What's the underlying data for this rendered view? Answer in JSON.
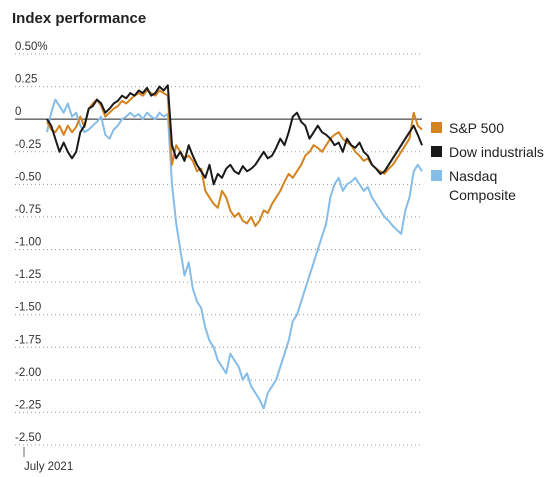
{
  "chart_data": {
    "type": "line",
    "title": "Index performance",
    "xlabel": "July 2021",
    "ylabel": "",
    "ylim": [
      -2.5,
      0.5
    ],
    "yticks": [
      0.5,
      0.25,
      0,
      -0.25,
      -0.5,
      -0.75,
      -1.0,
      -1.25,
      -1.5,
      -1.75,
      -2.0,
      -2.25,
      -2.5
    ],
    "ytick_labels": [
      "0.50%",
      "0.25",
      "0",
      "-0.25",
      "-0.50",
      "-0.75",
      "-1.00",
      "-1.25",
      "-1.50",
      "-1.75",
      "-2.00",
      "-2.25",
      "-2.50"
    ],
    "grid": "horizontal dotted",
    "legend_position": "right",
    "x": [
      0,
      1,
      2,
      3,
      4,
      5,
      6,
      7,
      8,
      9,
      10,
      11,
      12,
      13,
      14,
      15,
      16,
      17,
      18,
      19,
      20,
      21,
      22,
      23,
      24,
      25,
      26,
      27,
      28,
      29,
      30,
      31,
      32,
      33,
      34,
      35,
      36,
      37,
      38,
      39,
      40,
      41,
      42,
      43,
      44,
      45,
      46,
      47,
      48,
      49,
      50,
      51,
      52,
      53,
      54,
      55,
      56,
      57,
      58,
      59,
      60,
      61,
      62,
      63,
      64,
      65,
      66,
      67,
      68,
      69,
      70,
      71,
      72,
      73,
      74,
      75,
      76,
      77,
      78,
      79,
      80,
      81,
      82,
      83,
      84,
      85,
      86,
      87,
      88,
      89,
      90
    ],
    "series": [
      {
        "name": "S&P 500",
        "color": "#d4841f",
        "values": [
          -0.02,
          -0.08,
          -0.1,
          -0.05,
          -0.12,
          -0.05,
          -0.1,
          -0.06,
          0.02,
          -0.06,
          0.08,
          0.12,
          0.15,
          0.1,
          0.02,
          0.05,
          0.08,
          0.1,
          0.14,
          0.12,
          0.15,
          0.18,
          0.2,
          0.18,
          0.22,
          0.2,
          0.18,
          0.22,
          0.2,
          0.18,
          -0.35,
          -0.2,
          -0.25,
          -0.3,
          -0.28,
          -0.32,
          -0.4,
          -0.38,
          -0.55,
          -0.6,
          -0.65,
          -0.68,
          -0.55,
          -0.6,
          -0.7,
          -0.75,
          -0.72,
          -0.78,
          -0.8,
          -0.75,
          -0.82,
          -0.78,
          -0.7,
          -0.72,
          -0.65,
          -0.6,
          -0.55,
          -0.48,
          -0.42,
          -0.45,
          -0.4,
          -0.35,
          -0.28,
          -0.25,
          -0.2,
          -0.22,
          -0.25,
          -0.2,
          -0.15,
          -0.12,
          -0.1,
          -0.15,
          -0.18,
          -0.2,
          -0.25,
          -0.28,
          -0.32,
          -0.3,
          -0.35,
          -0.38,
          -0.4,
          -0.42,
          -0.38,
          -0.35,
          -0.3,
          -0.25,
          -0.2,
          -0.15,
          0.05,
          -0.05,
          -0.08
        ]
      },
      {
        "name": "Dow industrials",
        "color": "#1a1a1a",
        "values": [
          0.0,
          -0.05,
          -0.15,
          -0.25,
          -0.18,
          -0.25,
          -0.3,
          -0.25,
          -0.1,
          -0.05,
          0.08,
          0.1,
          0.15,
          0.12,
          0.05,
          0.08,
          0.12,
          0.14,
          0.18,
          0.16,
          0.2,
          0.18,
          0.22,
          0.2,
          0.24,
          0.18,
          0.2,
          0.25,
          0.22,
          0.26,
          -0.2,
          -0.3,
          -0.25,
          -0.32,
          -0.2,
          -0.28,
          -0.35,
          -0.4,
          -0.45,
          -0.35,
          -0.5,
          -0.42,
          -0.45,
          -0.38,
          -0.35,
          -0.4,
          -0.42,
          -0.36,
          -0.4,
          -0.38,
          -0.35,
          -0.3,
          -0.25,
          -0.3,
          -0.28,
          -0.22,
          -0.15,
          -0.2,
          -0.1,
          0.02,
          0.05,
          -0.02,
          -0.05,
          -0.15,
          -0.1,
          -0.05,
          -0.1,
          -0.12,
          -0.15,
          -0.2,
          -0.18,
          -0.25,
          -0.15,
          -0.2,
          -0.22,
          -0.18,
          -0.25,
          -0.28,
          -0.35,
          -0.38,
          -0.42,
          -0.4,
          -0.35,
          -0.3,
          -0.25,
          -0.2,
          -0.15,
          -0.1,
          -0.05,
          -0.12,
          -0.2
        ]
      },
      {
        "name": "Nasdaq Composite",
        "color": "#86bde8",
        "values": [
          -0.1,
          0.05,
          0.15,
          0.1,
          0.05,
          0.12,
          0.02,
          0.05,
          -0.05,
          -0.1,
          -0.08,
          -0.05,
          -0.02,
          0.02,
          -0.12,
          -0.15,
          -0.08,
          -0.05,
          0.0,
          0.02,
          0.05,
          0.02,
          0.04,
          0.0,
          0.05,
          0.02,
          0.0,
          0.05,
          0.02,
          0.04,
          -0.5,
          -0.8,
          -1.0,
          -1.2,
          -1.1,
          -1.3,
          -1.4,
          -1.45,
          -1.6,
          -1.7,
          -1.75,
          -1.85,
          -1.9,
          -1.95,
          -1.8,
          -1.85,
          -1.9,
          -2.0,
          -1.95,
          -2.05,
          -2.1,
          -2.15,
          -2.22,
          -2.1,
          -2.05,
          -2.0,
          -1.9,
          -1.8,
          -1.7,
          -1.55,
          -1.5,
          -1.4,
          -1.3,
          -1.2,
          -1.1,
          -1.0,
          -0.9,
          -0.8,
          -0.6,
          -0.5,
          -0.45,
          -0.55,
          -0.5,
          -0.48,
          -0.45,
          -0.5,
          -0.55,
          -0.52,
          -0.6,
          -0.65,
          -0.7,
          -0.75,
          -0.78,
          -0.82,
          -0.85,
          -0.88,
          -0.7,
          -0.6,
          -0.4,
          -0.35,
          -0.4
        ]
      }
    ]
  }
}
